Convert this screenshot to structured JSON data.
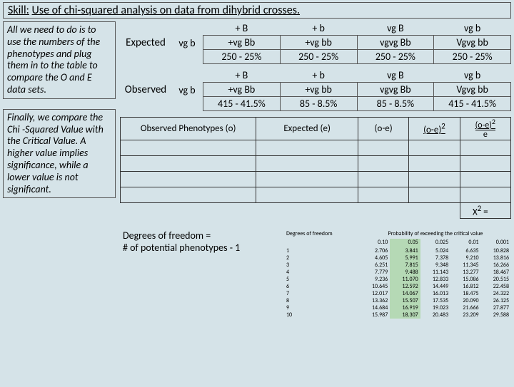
{
  "title_prefix": "Skill:",
  "title_text": "Use of chi-squared analysis on data from dihybrid crosses.",
  "note1": "All we need to do is to use the numbers of the phenotypes and plug them in to the table to compare the O and E data sets.",
  "note2": "Finally, we compare the Chi -Squared Value with the Critical Value.  A higher value implies significance, while a lower value is not significant.",
  "expected": {
    "label": "Expected",
    "rowhead": "vg b",
    "cols": [
      "+ B",
      "+ b",
      "vg B",
      "vg b"
    ],
    "row1": [
      "+vg Bb",
      "+vg bb",
      "vgvg Bb",
      "Vgvg bb"
    ],
    "row2": [
      "250 - 25%",
      "250 - 25%",
      "250 - 25%",
      "250 - 25%"
    ]
  },
  "observed": {
    "label": "Observed",
    "rowhead": "vg b",
    "cols": [
      "+ B",
      "+ b",
      "vg B",
      "vg b"
    ],
    "row1": [
      "+vg Bb",
      "+vg bb",
      "vgvg Bb",
      "Vgvg bb"
    ],
    "row2": [
      "415 - 41.5%",
      "85 - 8.5%",
      "85 - 8.5%",
      "415 - 41.5%"
    ]
  },
  "chi_headers": {
    "o": "Observed Phenotypes (o)",
    "e": "Expected (e)",
    "oe": "(o-e)",
    "oe2": "(o-e)",
    "oe2e_top": "(o-e)",
    "oe2e_bot": "e",
    "x2": "X",
    "x2_after": " ="
  },
  "dof_line1": "Degrees of freedom =",
  "dof_line2": "# of potential phenotypes - 1",
  "crit": {
    "head_left": "Degrees of freedom",
    "head_right": "Probability of exceeding the critical value",
    "probs": [
      "0.10",
      "0.05",
      "0.025",
      "0.01",
      "0.001"
    ],
    "rows": [
      [
        "1",
        "2.706",
        "3.841",
        "5.024",
        "6.635",
        "10.828"
      ],
      [
        "2",
        "4.605",
        "5.991",
        "7.378",
        "9.210",
        "13.816"
      ],
      [
        "3",
        "6.251",
        "7.815",
        "9.348",
        "11.345",
        "16.266"
      ],
      [
        "4",
        "7.779",
        "9.488",
        "11.143",
        "13.277",
        "18.467"
      ],
      [
        "5",
        "9.236",
        "11.070",
        "12.833",
        "15.086",
        "20.515"
      ],
      [
        "6",
        "10.645",
        "12.592",
        "14.449",
        "16.812",
        "22.458"
      ],
      [
        "7",
        "12.017",
        "14.067",
        "16.013",
        "18.475",
        "24.322"
      ],
      [
        "8",
        "13.362",
        "15.507",
        "17.535",
        "20.090",
        "26.125"
      ],
      [
        "9",
        "14.684",
        "16.919",
        "19.023",
        "21.666",
        "27.877"
      ],
      [
        "10",
        "15.987",
        "18.307",
        "20.483",
        "23.209",
        "29.588"
      ]
    ]
  }
}
